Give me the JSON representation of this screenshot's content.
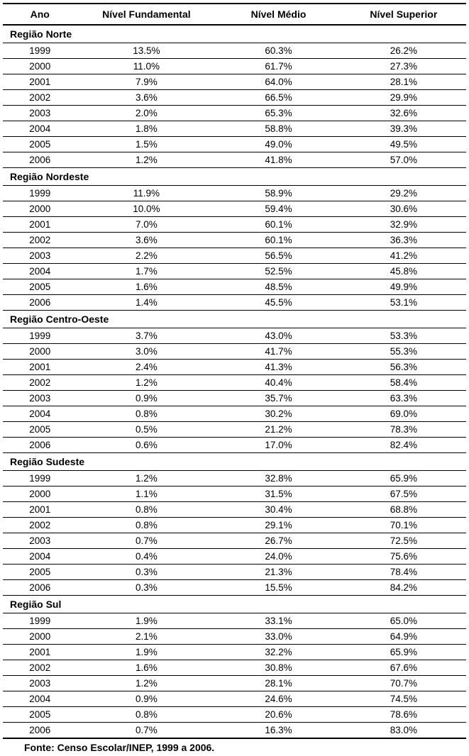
{
  "columns": {
    "ano": "Ano",
    "fundamental": "Nível Fundamental",
    "medio": "Nível Médio",
    "superior": "Nível Superior"
  },
  "regions": [
    {
      "name": "Região Norte",
      "rows": [
        {
          "ano": "1999",
          "fund": "13.5%",
          "med": "60.3%",
          "sup": "26.2%"
        },
        {
          "ano": "2000",
          "fund": "11.0%",
          "med": "61.7%",
          "sup": "27.3%"
        },
        {
          "ano": "2001",
          "fund": "7.9%",
          "med": "64.0%",
          "sup": "28.1%"
        },
        {
          "ano": "2002",
          "fund": "3.6%",
          "med": "66.5%",
          "sup": "29.9%"
        },
        {
          "ano": "2003",
          "fund": "2.0%",
          "med": "65.3%",
          "sup": "32.6%"
        },
        {
          "ano": "2004",
          "fund": "1.8%",
          "med": "58.8%",
          "sup": "39.3%"
        },
        {
          "ano": "2005",
          "fund": "1.5%",
          "med": "49.0%",
          "sup": "49.5%"
        },
        {
          "ano": "2006",
          "fund": "1.2%",
          "med": "41.8%",
          "sup": "57.0%"
        }
      ]
    },
    {
      "name": "Região Nordeste",
      "rows": [
        {
          "ano": "1999",
          "fund": "11.9%",
          "med": "58.9%",
          "sup": "29.2%"
        },
        {
          "ano": "2000",
          "fund": "10.0%",
          "med": "59.4%",
          "sup": "30.6%"
        },
        {
          "ano": "2001",
          "fund": "7.0%",
          "med": "60.1%",
          "sup": "32.9%"
        },
        {
          "ano": "2002",
          "fund": "3.6%",
          "med": "60.1%",
          "sup": "36.3%"
        },
        {
          "ano": "2003",
          "fund": "2.2%",
          "med": "56.5%",
          "sup": "41.2%"
        },
        {
          "ano": "2004",
          "fund": "1.7%",
          "med": "52.5%",
          "sup": "45.8%"
        },
        {
          "ano": "2005",
          "fund": "1.6%",
          "med": "48.5%",
          "sup": "49.9%"
        },
        {
          "ano": "2006",
          "fund": "1.4%",
          "med": "45.5%",
          "sup": "53.1%"
        }
      ]
    },
    {
      "name": "Região Centro-Oeste",
      "rows": [
        {
          "ano": "1999",
          "fund": "3.7%",
          "med": "43.0%",
          "sup": "53.3%"
        },
        {
          "ano": "2000",
          "fund": "3.0%",
          "med": "41.7%",
          "sup": "55.3%"
        },
        {
          "ano": "2001",
          "fund": "2.4%",
          "med": "41.3%",
          "sup": "56.3%"
        },
        {
          "ano": "2002",
          "fund": "1.2%",
          "med": "40.4%",
          "sup": "58.4%"
        },
        {
          "ano": "2003",
          "fund": "0.9%",
          "med": "35.7%",
          "sup": "63.3%"
        },
        {
          "ano": "2004",
          "fund": "0.8%",
          "med": "30.2%",
          "sup": "69.0%"
        },
        {
          "ano": "2005",
          "fund": "0.5%",
          "med": "21.2%",
          "sup": "78.3%"
        },
        {
          "ano": "2006",
          "fund": "0.6%",
          "med": "17.0%",
          "sup": "82.4%"
        }
      ]
    },
    {
      "name": "Região Sudeste",
      "rows": [
        {
          "ano": "1999",
          "fund": "1.2%",
          "med": "32.8%",
          "sup": "65.9%"
        },
        {
          "ano": "2000",
          "fund": "1.1%",
          "med": "31.5%",
          "sup": "67.5%"
        },
        {
          "ano": "2001",
          "fund": "0.8%",
          "med": "30.4%",
          "sup": "68.8%"
        },
        {
          "ano": "2002",
          "fund": "0.8%",
          "med": "29.1%",
          "sup": "70.1%"
        },
        {
          "ano": "2003",
          "fund": "0.7%",
          "med": "26.7%",
          "sup": "72.5%"
        },
        {
          "ano": "2004",
          "fund": "0.4%",
          "med": "24.0%",
          "sup": "75.6%"
        },
        {
          "ano": "2005",
          "fund": "0.3%",
          "med": "21.3%",
          "sup": "78.4%"
        },
        {
          "ano": "2006",
          "fund": "0.3%",
          "med": "15.5%",
          "sup": "84.2%"
        }
      ]
    },
    {
      "name": "Região Sul",
      "rows": [
        {
          "ano": "1999",
          "fund": "1.9%",
          "med": "33.1%",
          "sup": "65.0%"
        },
        {
          "ano": "2000",
          "fund": "2.1%",
          "med": "33.0%",
          "sup": "64.9%"
        },
        {
          "ano": "2001",
          "fund": "1.9%",
          "med": "32.2%",
          "sup": "65.9%"
        },
        {
          "ano": "2002",
          "fund": "1.6%",
          "med": "30.8%",
          "sup": "67.6%"
        },
        {
          "ano": "2003",
          "fund": "1.2%",
          "med": "28.1%",
          "sup": "70.7%"
        },
        {
          "ano": "2004",
          "fund": "0.9%",
          "med": "24.6%",
          "sup": "74.5%"
        },
        {
          "ano": "2005",
          "fund": "0.8%",
          "med": "20.6%",
          "sup": "78.6%"
        },
        {
          "ano": "2006",
          "fund": "0.7%",
          "med": "16.3%",
          "sup": "83.0%"
        }
      ]
    }
  ],
  "footer": "Fonte: Censo Escolar/INEP, 1999 a 2006.",
  "style": {
    "font_family": "Arial",
    "header_fontsize": 14,
    "region_fontsize": 14,
    "cell_fontsize": 13.5,
    "footer_fontsize": 14,
    "text_color": "#000000",
    "background_color": "#ffffff",
    "border_color": "#000000",
    "header_border_width": 2,
    "row_border_width": 1,
    "bottom_border_width": 2,
    "col_widths_pct": [
      16,
      30,
      27,
      27
    ]
  }
}
